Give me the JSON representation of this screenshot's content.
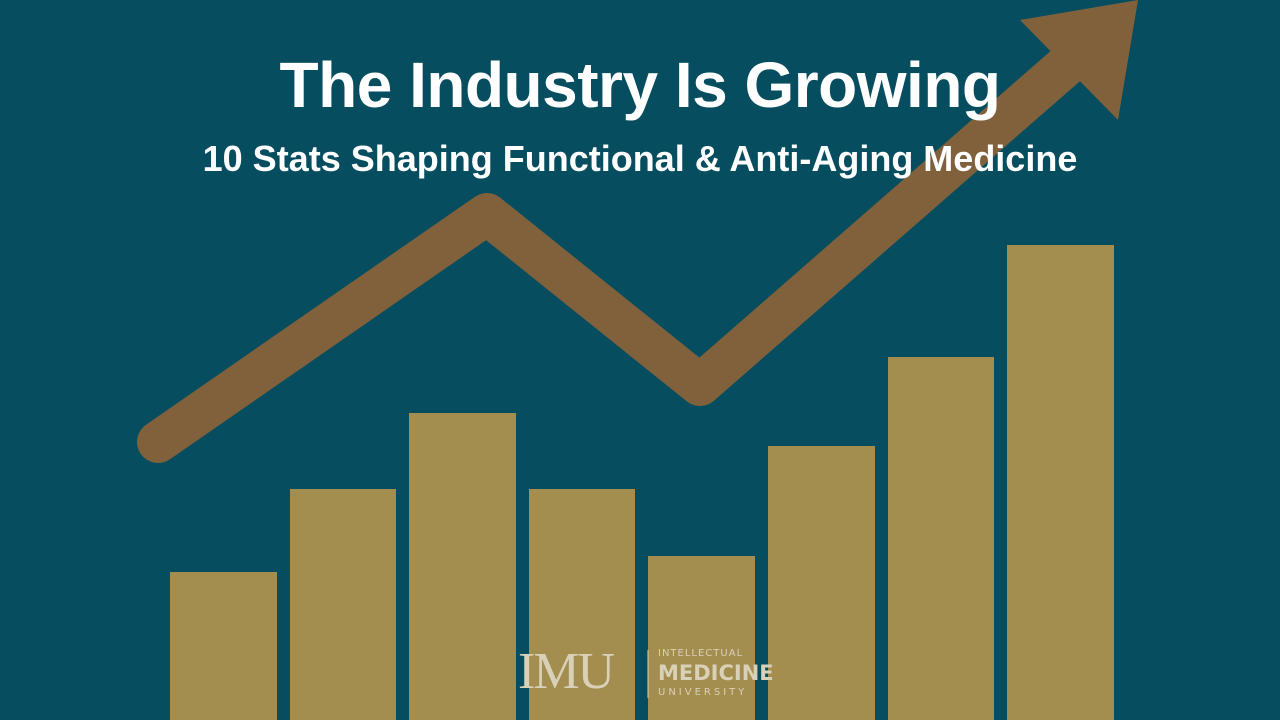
{
  "header": {
    "title": "The Industry Is Growing",
    "subtitle": "10 Stats Shaping Functional & Anti-Aging Medicine"
  },
  "logo": {
    "mark": "IMU",
    "line1": "INTELLECTUAL",
    "line2": "MEDICINE",
    "line3": "UNIVERSITY"
  }
}
